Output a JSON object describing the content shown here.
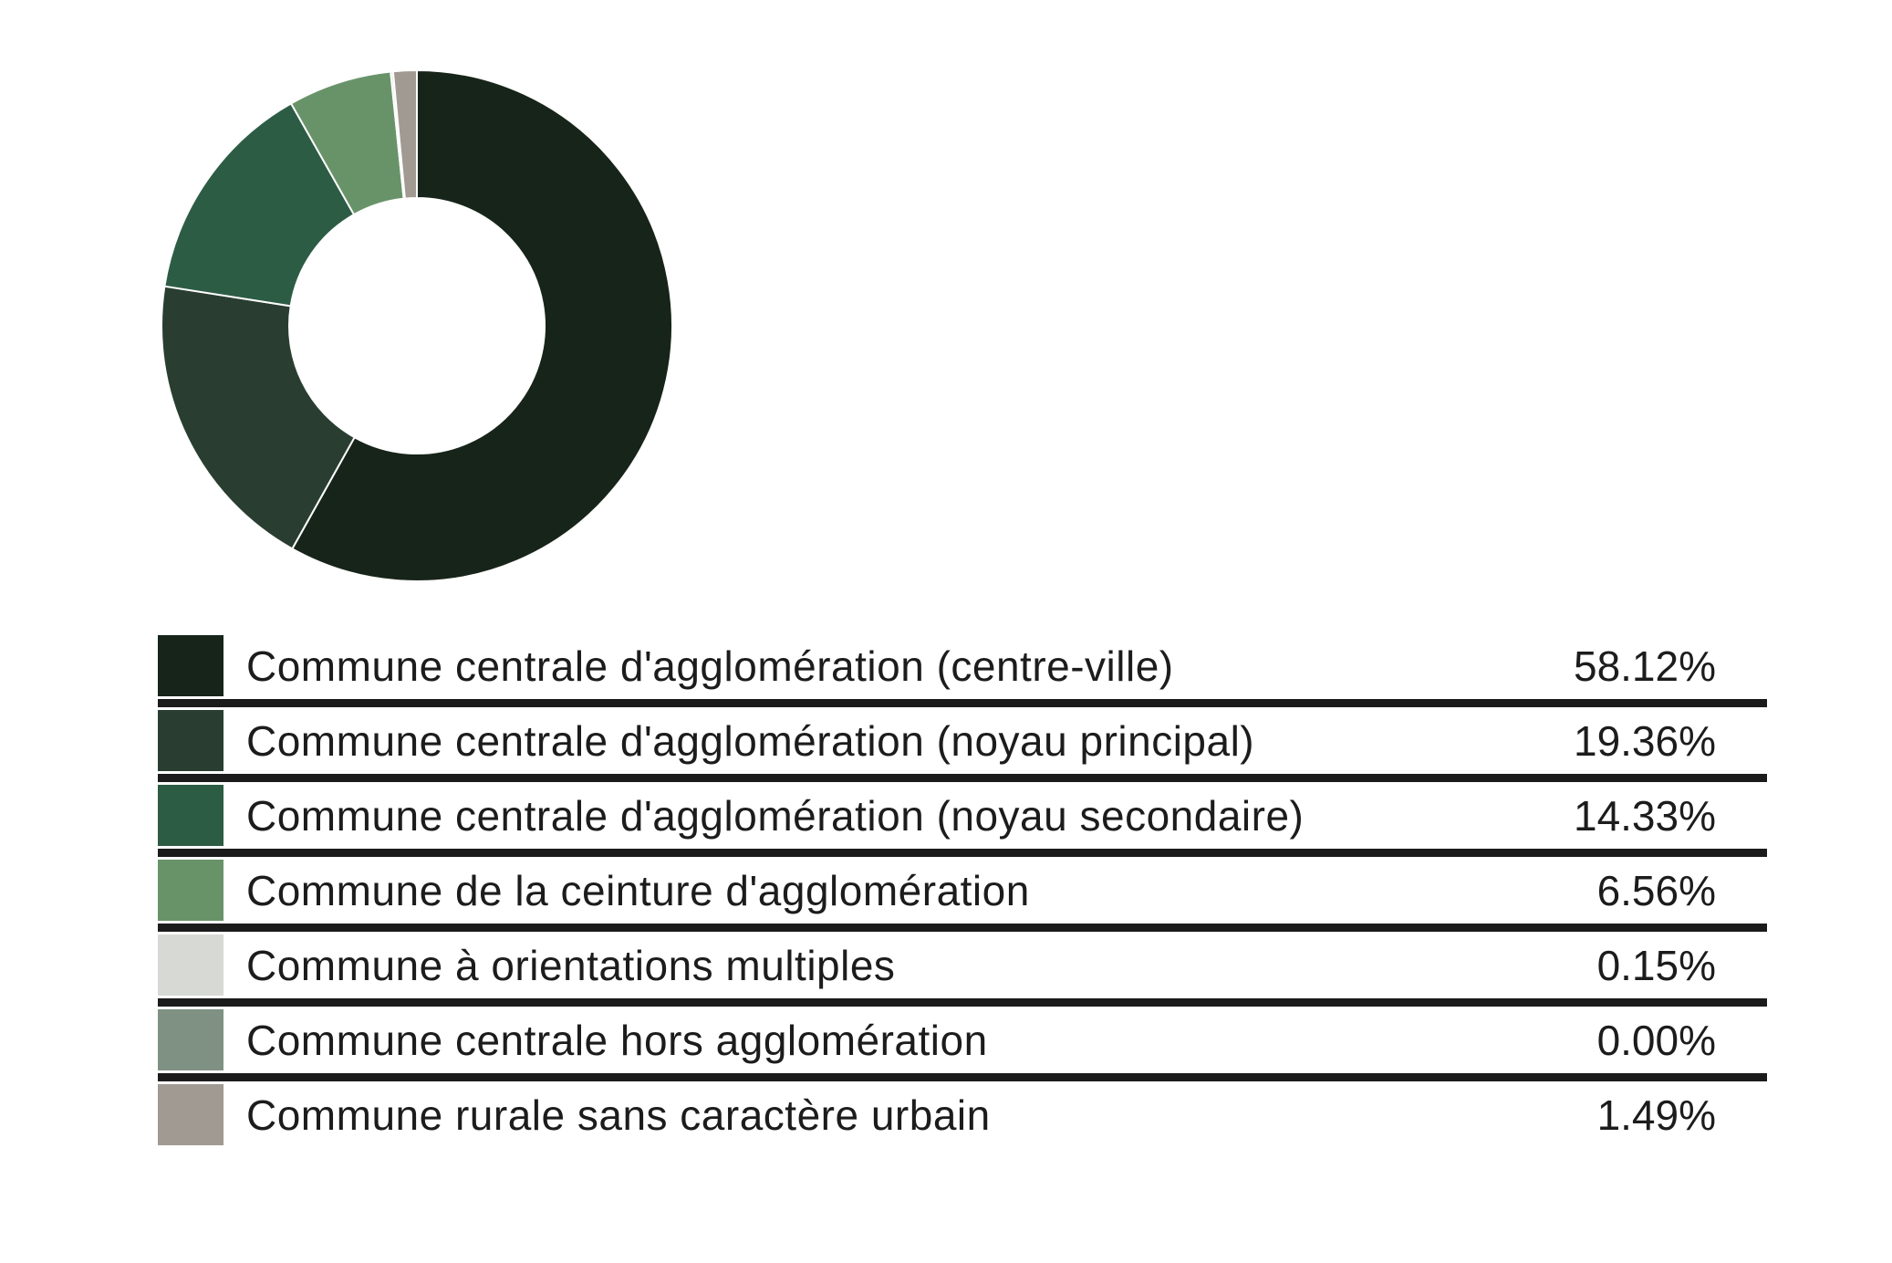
{
  "page": {
    "background": "#ffffff"
  },
  "chart_data": {
    "type": "pie",
    "variant": "donut",
    "title": "",
    "categories": [
      "Commune centrale d'agglomération (centre-ville)",
      "Commune centrale d'agglomération (noyau principal)",
      "Commune centrale d'agglomération (noyau secondaire)",
      "Commune de la ceinture d'agglomération",
      "Commune à orientations multiples",
      "Commune centrale hors agglomération",
      "Commune rurale sans caractère urbain"
    ],
    "values": [
      58.12,
      19.36,
      14.33,
      6.56,
      0.15,
      0.0,
      1.49
    ],
    "percent_labels": [
      "58.12%",
      "19.36%",
      "14.33%",
      "6.56%",
      "0.15%",
      "0.00%",
      "1.49%"
    ],
    "colors": [
      "#172419",
      "#293e31",
      "#2d5c45",
      "#689369",
      "#d7d9d5",
      "#7f9183",
      "#a09a92"
    ],
    "start_angle_deg": 0,
    "direction": "clockwise",
    "inner_radius_ratio": 0.5,
    "slice_stroke_color": "#ffffff",
    "legend_position": "bottom",
    "legend_separator_color": "#1b1b1b",
    "legend_text_color": "#1c1c1c"
  }
}
